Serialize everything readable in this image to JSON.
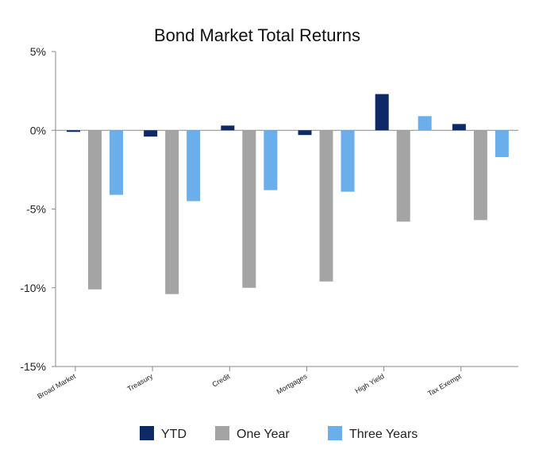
{
  "colors": {
    "ytd": "#0d2a66",
    "one_year": "#a4a4a4",
    "three_years": "#6aaeec",
    "axis": "#8a8a8a"
  },
  "chart_data": {
    "type": "bar",
    "title": "Bond Market Total Returns",
    "categories": [
      "Broad Market",
      "Treasury",
      "Credit",
      "Mortgages",
      "High Yield",
      "Tax Exempt"
    ],
    "series": [
      {
        "name": "YTD",
        "values": [
          -0.1,
          -0.4,
          0.3,
          -0.3,
          2.3,
          0.4
        ]
      },
      {
        "name": "One Year",
        "values": [
          -10.1,
          -10.4,
          -10.0,
          -9.6,
          -5.8,
          -5.7
        ]
      },
      {
        "name": "Three Years",
        "values": [
          -4.1,
          -4.5,
          -3.8,
          -3.9,
          0.9,
          -1.7
        ]
      }
    ],
    "ylim": [
      -15,
      5
    ],
    "yticks": [
      5,
      0,
      -5,
      -10,
      -15
    ],
    "ytick_labels": [
      "5%",
      "0%",
      "-5%",
      "-10%",
      "-15%"
    ],
    "grid": false,
    "legend_position": "bottom"
  }
}
